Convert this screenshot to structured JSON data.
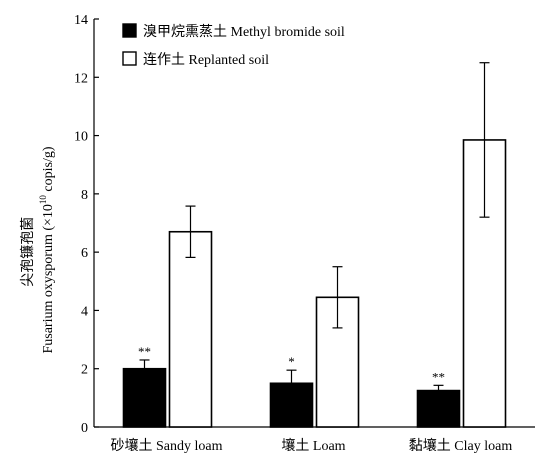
{
  "chart_data": {
    "type": "bar",
    "title": "",
    "xlabel": "",
    "ylabel_line1": "尖孢镰孢菌",
    "ylabel_line2_pre": "Fusarium oxysporum (×10",
    "ylabel_line2_sup": "10",
    "ylabel_line2_post": " copis/g)",
    "ylim": [
      0,
      14
    ],
    "yticks": [
      "0",
      "2",
      "4",
      "6",
      "8",
      "10",
      "12",
      "14"
    ],
    "categories": [
      "砂壤土 Sandy loam",
      "壤土 Loam",
      "黏壤土 Clay loam"
    ],
    "series": [
      {
        "name": "溴甲烷熏蒸土 Methyl bromide soil",
        "fill": "#000000",
        "values": [
          2.0,
          1.5,
          1.25
        ],
        "errors": [
          0.3,
          0.45,
          0.18
        ],
        "significance": [
          "**",
          "*",
          "**"
        ]
      },
      {
        "name": "连作土 Replanted soil",
        "fill": "#ffffff",
        "values": [
          6.7,
          4.45,
          9.85
        ],
        "errors": [
          0.88,
          1.05,
          2.65
        ],
        "significance": [
          "",
          "",
          ""
        ]
      }
    ],
    "legend_position": "top-left",
    "grid": false
  }
}
